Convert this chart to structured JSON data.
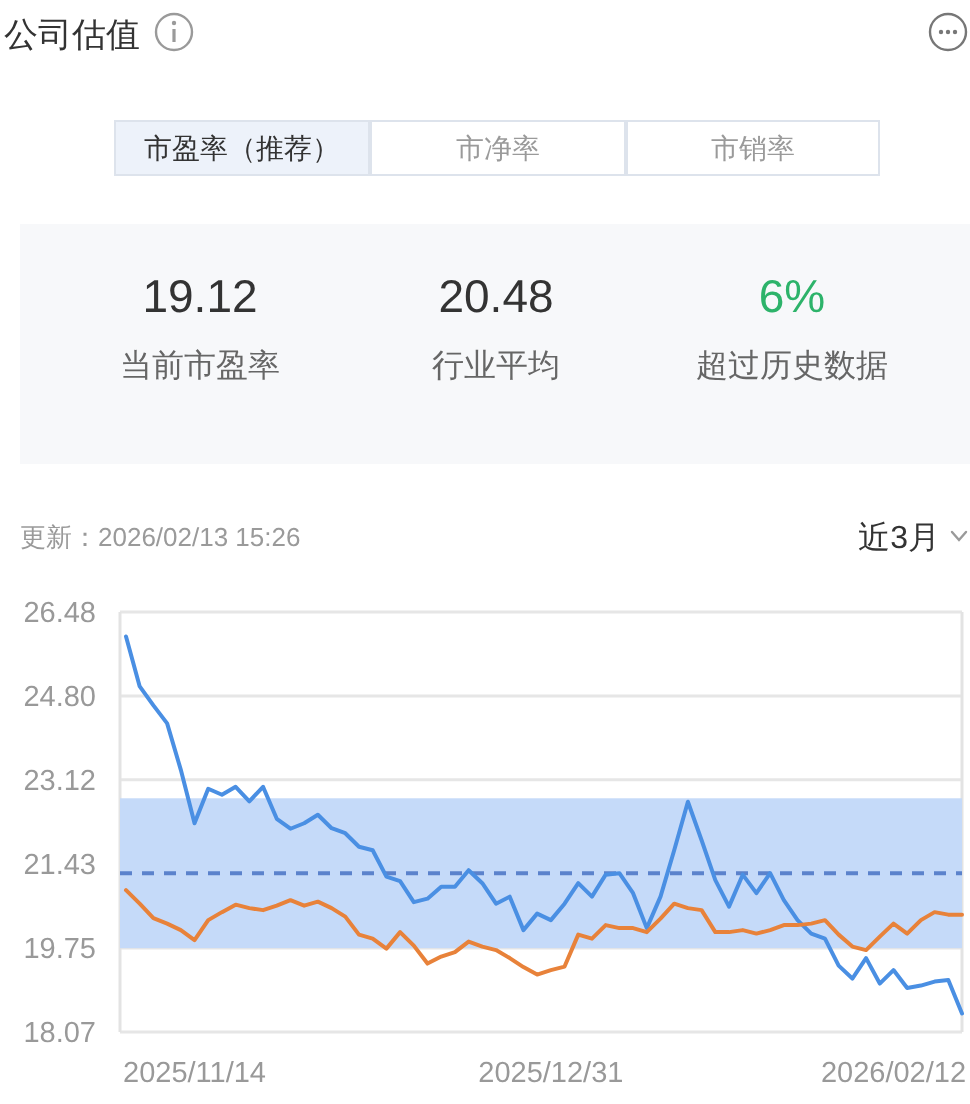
{
  "chart_data": {
    "type": "line",
    "title": "公司估值",
    "categories": [
      null,
      null,
      null,
      null,
      null,
      "2025/11/14",
      null,
      null,
      null,
      null,
      null,
      null,
      null,
      null,
      null,
      null,
      null,
      null,
      null,
      null,
      null,
      null,
      null,
      null,
      null,
      null,
      null,
      null,
      null,
      null,
      null,
      "2025/12/31",
      null,
      null,
      null,
      null,
      null,
      null,
      null,
      null,
      null,
      null,
      null,
      null,
      null,
      null,
      null,
      null,
      null,
      null,
      null,
      null,
      null,
      null,
      null,
      null,
      "2026/02/12",
      null,
      null,
      null,
      null,
      null
    ],
    "series": [
      {
        "color": "#4a8fe3",
        "values": [
          25.99,
          24.99,
          24.61,
          24.25,
          23.32,
          22.25,
          22.94,
          22.82,
          22.98,
          22.69,
          22.98,
          22.34,
          22.14,
          22.25,
          22.42,
          22.15,
          22.05,
          21.78,
          21.71,
          21.18,
          21.09,
          20.67,
          20.74,
          20.98,
          20.98,
          21.31,
          21.05,
          20.64,
          20.78,
          20.11,
          20.44,
          20.31,
          20.64,
          21.05,
          20.78,
          21.22,
          21.25,
          20.85,
          20.15,
          20.78,
          21.71,
          22.68,
          21.91,
          21.11,
          20.58,
          21.22,
          20.85,
          21.25,
          20.71,
          20.31,
          20.04,
          19.94,
          19.4,
          19.14,
          19.55,
          19.04,
          19.31,
          18.95,
          19.0,
          19.08,
          19.11,
          18.44
        ]
      },
      {
        "color": "#e8823a",
        "values": [
          20.91,
          20.64,
          20.35,
          20.24,
          20.11,
          19.91,
          20.31,
          20.47,
          20.62,
          20.55,
          20.51,
          20.6,
          20.71,
          20.6,
          20.68,
          20.55,
          20.38,
          20.02,
          19.94,
          19.74,
          20.07,
          19.8,
          19.44,
          19.58,
          19.67,
          19.88,
          19.78,
          19.71,
          19.55,
          19.37,
          19.22,
          19.31,
          19.38,
          20.02,
          19.94,
          20.21,
          20.15,
          20.15,
          20.07,
          20.34,
          20.64,
          20.55,
          20.51,
          20.07,
          20.07,
          20.11,
          20.04,
          20.11,
          20.21,
          20.21,
          20.24,
          20.31,
          20.02,
          19.78,
          19.71,
          19.98,
          20.24,
          20.04,
          20.31,
          20.47,
          20.42,
          20.42
        ]
      }
    ],
    "ylim": [
      18.07,
      26.48
    ],
    "yticks": [
      18.07,
      19.75,
      21.43,
      23.12,
      {
        "value": 24.8,
        "label": "24.80"
      },
      26.48
    ],
    "grid": "y",
    "ref_lines": [
      {
        "axis": "y",
        "value": 21.25,
        "color": "#5b82cc",
        "line_style": "dashed"
      }
    ],
    "bands": [
      {
        "axis": "y",
        "from": 19.75,
        "to": 22.75,
        "color": "#c5daf9"
      }
    ],
    "annotations": [
      "市盈率（推荐）",
      "市净率",
      "市销率",
      "19.12",
      "当前市盈率",
      "20.48",
      "行业平均",
      "6%",
      "超过历史数据",
      "更新：2026/02/13 15:26",
      "近3月"
    ]
  }
}
